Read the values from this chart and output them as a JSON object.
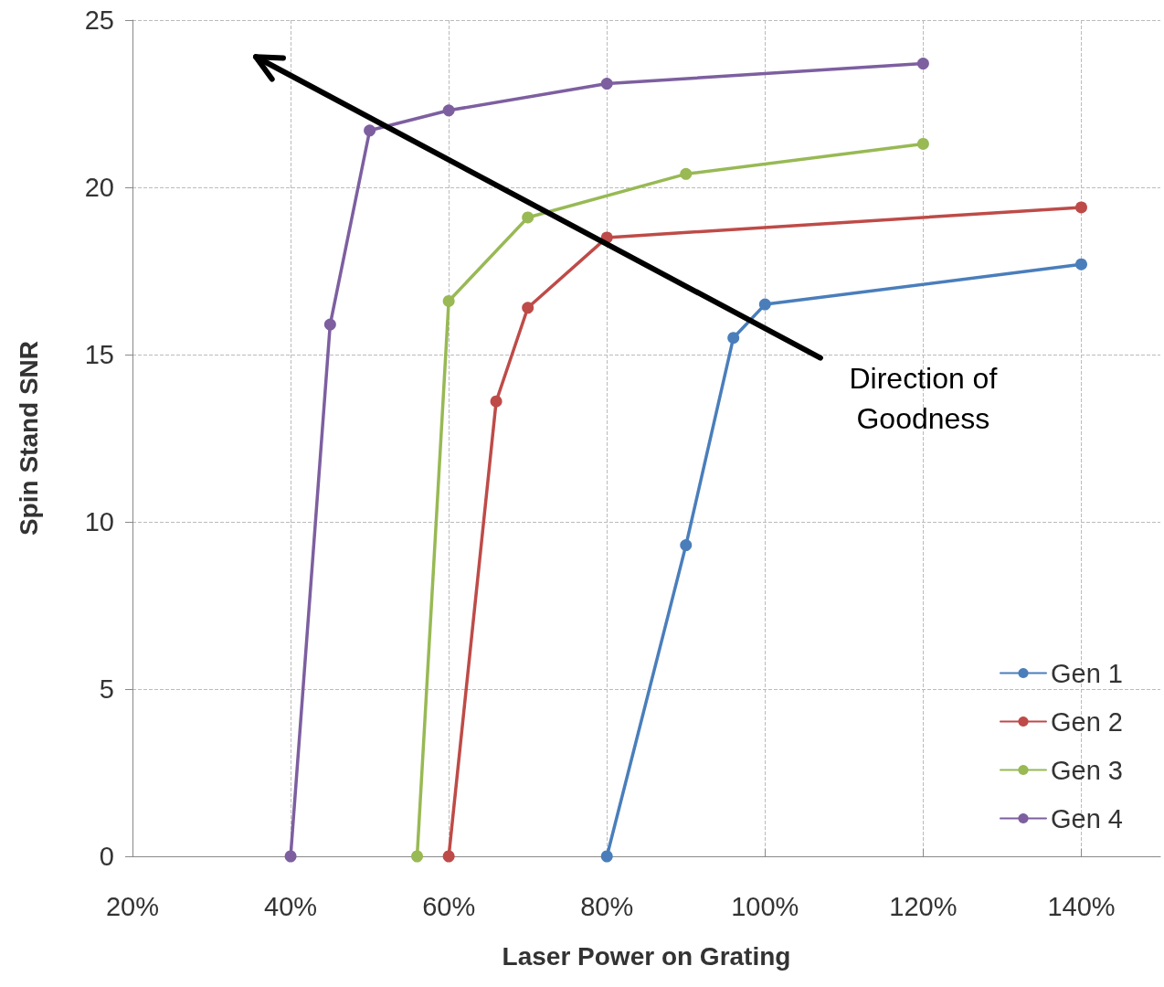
{
  "chart_data": {
    "type": "line",
    "xlabel": "Laser Power on Grating",
    "ylabel": "Spin Stand SNR",
    "xlim": [
      20,
      150
    ],
    "xticks": [
      {
        "value": 20,
        "label": "20%"
      },
      {
        "value": 40,
        "label": "40%"
      },
      {
        "value": 60,
        "label": "60%"
      },
      {
        "value": 80,
        "label": "80%"
      },
      {
        "value": 100,
        "label": "100%"
      },
      {
        "value": 120,
        "label": "120%"
      },
      {
        "value": 140,
        "label": "140%"
      }
    ],
    "ylim": [
      0,
      25
    ],
    "yticks": [
      0,
      5,
      10,
      15,
      20,
      25
    ],
    "grid": true,
    "legend": "bottom right",
    "marker": "circle",
    "line_style": "solid",
    "annotations": [
      "Direction of\nGoodness"
    ],
    "series": [
      {
        "name": "Gen 1",
        "color": "#4a7ebb",
        "x": [
          80,
          90,
          96,
          100,
          140
        ],
        "values": [
          0,
          9.3,
          15.5,
          16.5,
          17.7
        ]
      },
      {
        "name": "Gen 2",
        "color": "#be4b48",
        "x": [
          60,
          66,
          70,
          80,
          140
        ],
        "values": [
          0,
          13.6,
          16.4,
          18.5,
          19.4
        ]
      },
      {
        "name": "Gen 3",
        "color": "#98b954",
        "x": [
          56,
          60,
          70,
          90,
          120
        ],
        "values": [
          0,
          16.6,
          19.1,
          20.4,
          21.3
        ]
      },
      {
        "name": "Gen 4",
        "color": "#7d5fa0",
        "x": [
          40,
          45,
          50,
          60,
          80,
          120
        ],
        "values": [
          0,
          15.9,
          21.7,
          22.3,
          23.1,
          23.7
        ]
      }
    ]
  }
}
